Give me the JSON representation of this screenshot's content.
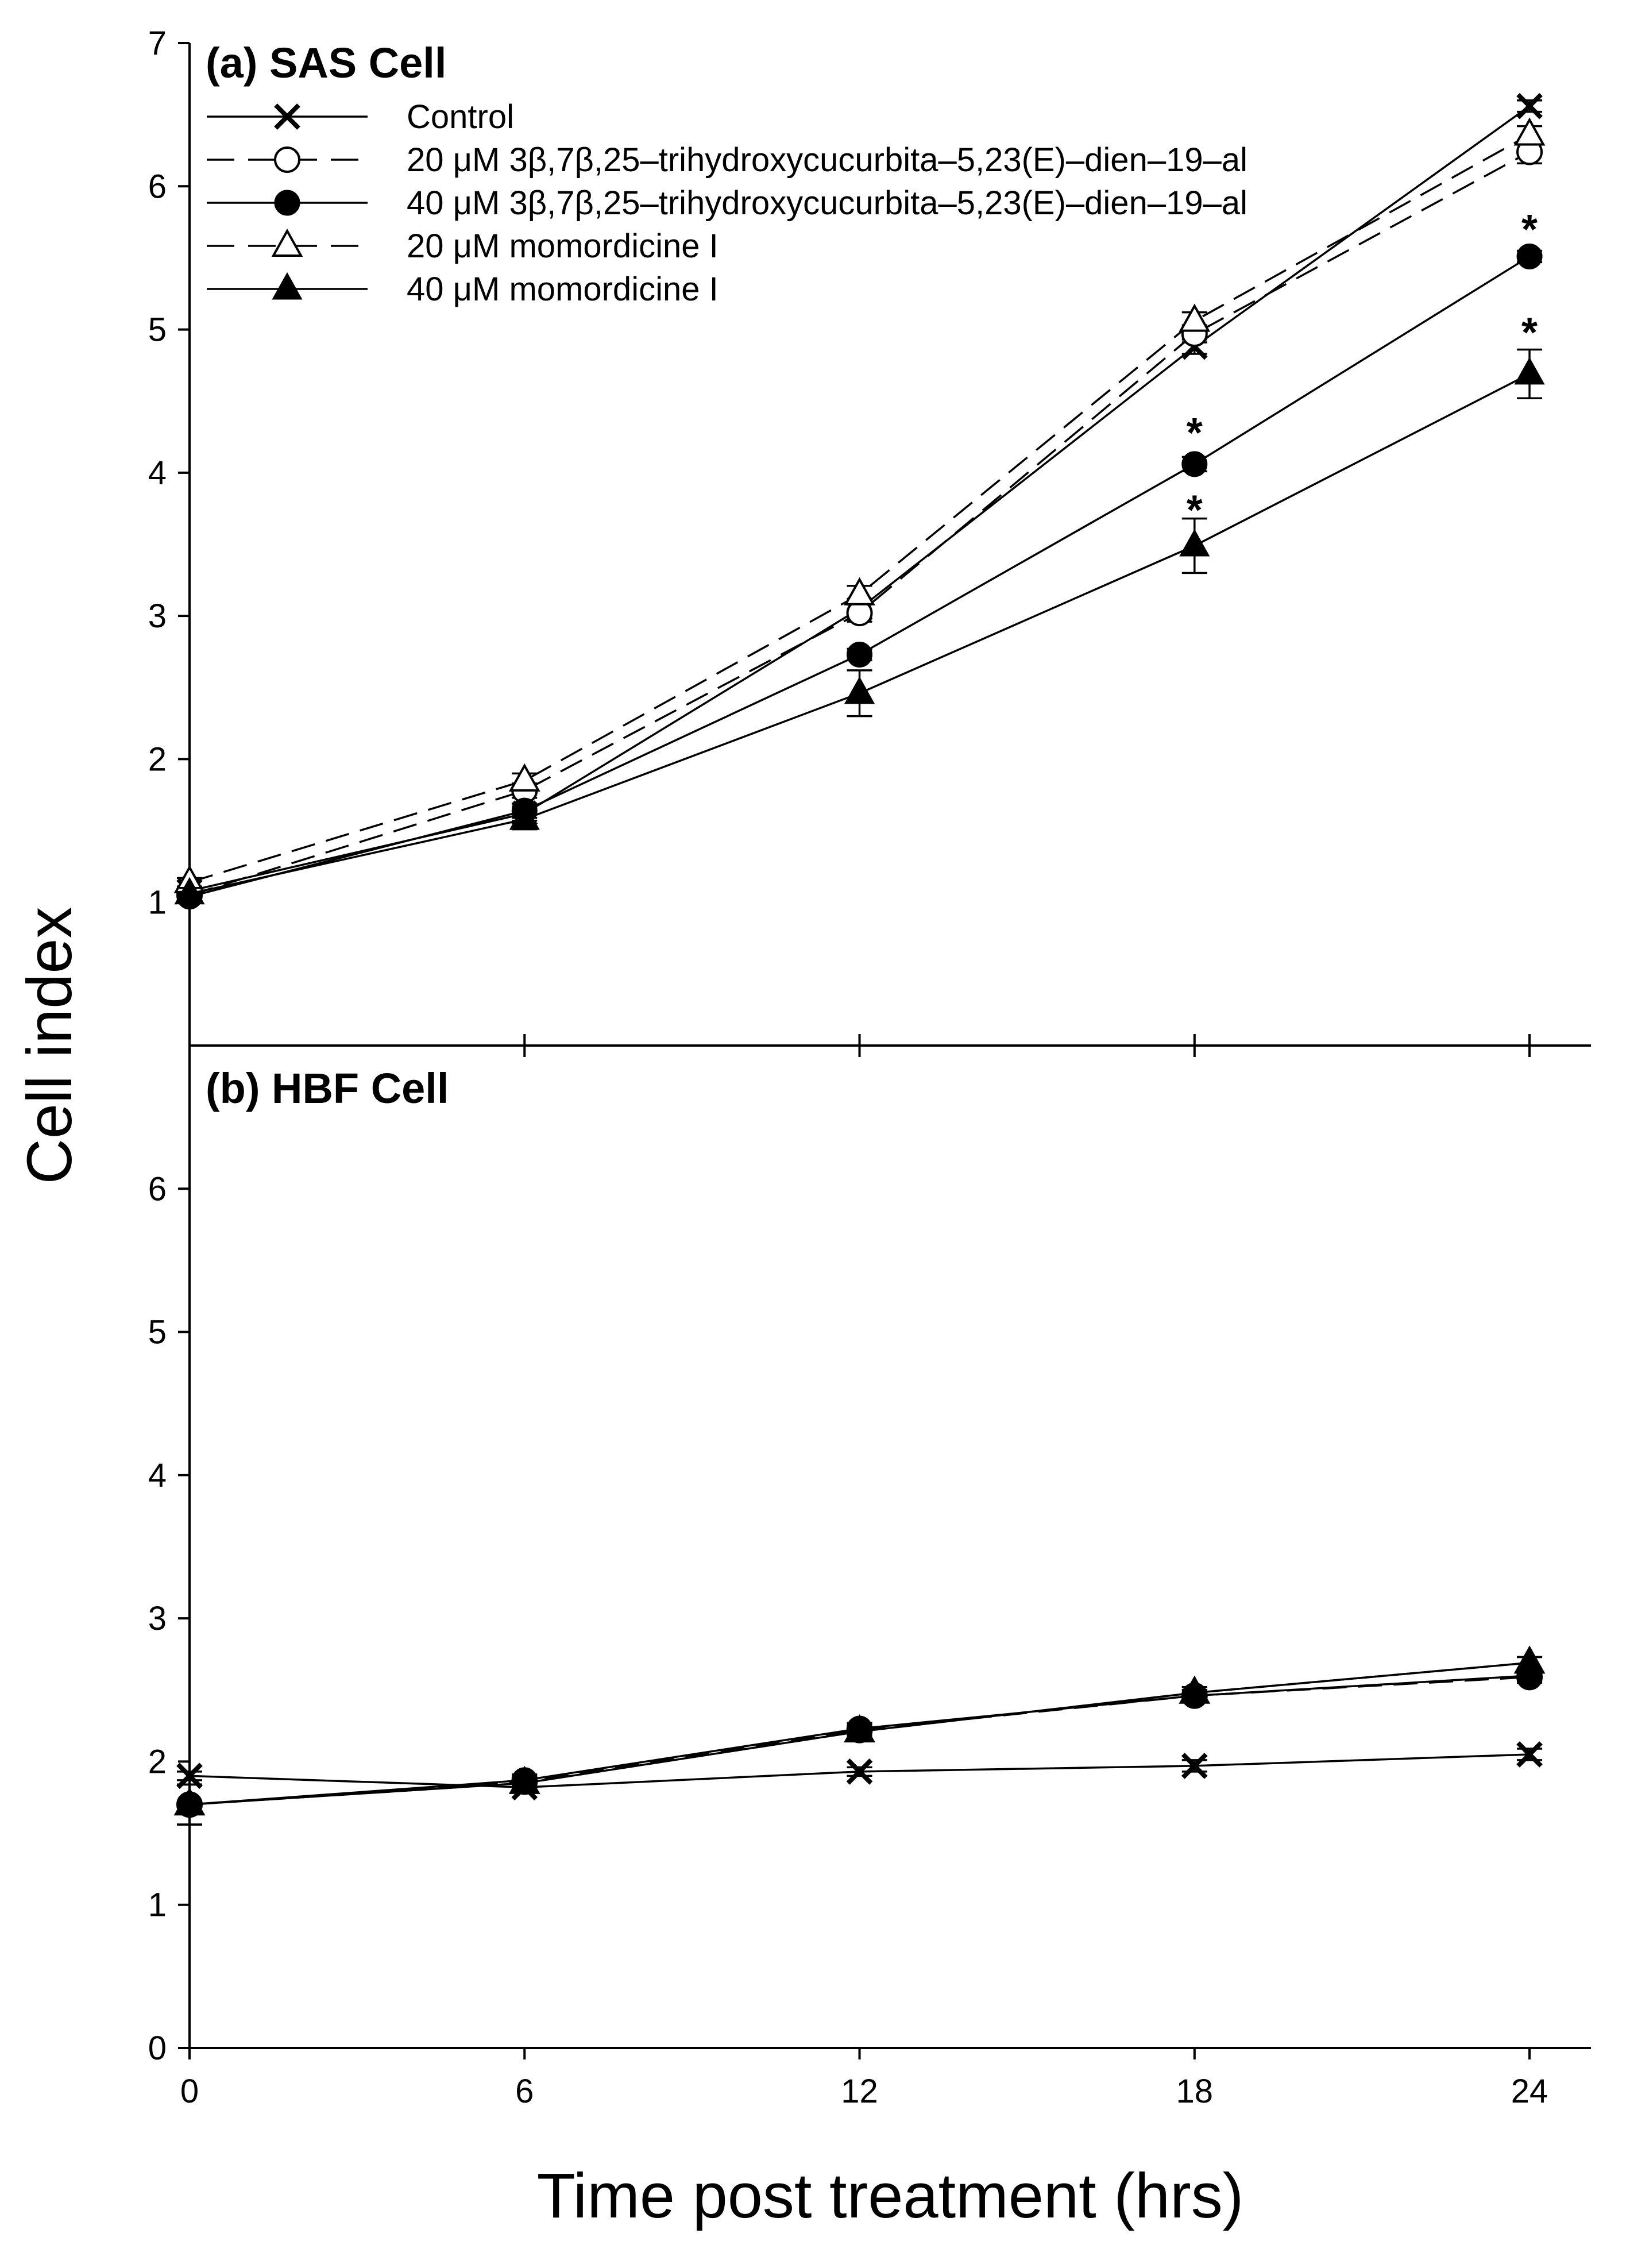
{
  "chart_data": {
    "type": "line",
    "ylabel": "Cell index",
    "xlabel": "Time post treatment (hrs)",
    "x": [
      0,
      6,
      12,
      18,
      24
    ],
    "x_ticks": [
      "0",
      "6",
      "12",
      "18",
      "24"
    ],
    "xlim": [
      0,
      25.1
    ],
    "legend": [
      {
        "id": "control",
        "label": "Control",
        "marker": "x",
        "dash": false
      },
      {
        "id": "c20",
        "label": "20 μM 3β,7β,25–trihydroxycucurbita–5,23(E)–dien–19–al",
        "marker": "open-circle",
        "dash": true
      },
      {
        "id": "c40",
        "label": "40 μM 3β,7β,25–trihydroxycucurbita–5,23(E)–dien–19–al",
        "marker": "filled-circle",
        "dash": false
      },
      {
        "id": "m20",
        "label": "20 μM  momordicine I",
        "marker": "open-triangle",
        "dash": true
      },
      {
        "id": "m40",
        "label": "40 μM  momordicine I",
        "marker": "filled-triangle",
        "dash": false
      }
    ],
    "panels": [
      {
        "id": "a",
        "title": "(a) SAS Cell",
        "ylim": [
          0,
          7
        ],
        "y_ticks": [
          "1",
          "2",
          "3",
          "4",
          "5",
          "6",
          "7"
        ],
        "series": [
          {
            "id": "control",
            "values": [
              1.08,
              1.62,
              3.05,
              4.88,
              6.56
            ],
            "err": [
              0.03,
              0.05,
              0.05,
              0.05,
              0.04
            ]
          },
          {
            "id": "c20",
            "values": [
              1.05,
              1.78,
              3.02,
              4.97,
              6.24
            ],
            "err": [
              0.03,
              0.05,
              0.06,
              0.06,
              0.08
            ]
          },
          {
            "id": "c40",
            "values": [
              1.04,
              1.64,
              2.73,
              4.06,
              5.51
            ],
            "err": [
              0.03,
              0.05,
              0.04,
              0.05,
              0.04
            ]
          },
          {
            "id": "m20",
            "values": [
              1.14,
              1.85,
              3.15,
              5.06,
              6.36
            ],
            "err": [
              0.03,
              0.05,
              0.06,
              0.06,
              0.06
            ]
          },
          {
            "id": "m40",
            "values": [
              1.06,
              1.58,
              2.46,
              3.49,
              4.69
            ],
            "err": [
              0.04,
              0.07,
              0.16,
              0.19,
              0.17
            ]
          }
        ],
        "annotations": [
          {
            "text": "*",
            "x": 18,
            "y": 4.34
          },
          {
            "text": "*",
            "x": 18,
            "y": 3.8
          },
          {
            "text": "*",
            "x": 24,
            "y": 5.76
          },
          {
            "text": "*",
            "x": 24,
            "y": 5.04
          }
        ]
      },
      {
        "id": "b",
        "title": "(b) HBF Cell",
        "ylim": [
          0,
          7
        ],
        "y_ticks": [
          "0",
          "1",
          "2",
          "3",
          "4",
          "5",
          "6"
        ],
        "series": [
          {
            "id": "control",
            "values": [
              1.9,
              1.82,
              1.93,
              1.97,
              2.05
            ],
            "err": [
              0.03,
              0.03,
              0.03,
              0.04,
              0.04
            ]
          },
          {
            "id": "c20",
            "values": [
              1.7,
              1.86,
              2.22,
              2.46,
              2.59
            ],
            "err": [
              0.14,
              0.04,
              0.04,
              0.04,
              0.04
            ]
          },
          {
            "id": "c40",
            "values": [
              1.7,
              1.87,
              2.23,
              2.46,
              2.6
            ],
            "err": [
              0.14,
              0.04,
              0.04,
              0.04,
              0.04
            ]
          },
          {
            "id": "m20",
            "values": [
              1.7,
              1.85,
              2.21,
              2.48,
              2.69
            ],
            "err": [
              0.14,
              0.04,
              0.04,
              0.04,
              0.04
            ]
          },
          {
            "id": "m40",
            "values": [
              1.7,
              1.85,
              2.21,
              2.48,
              2.69
            ],
            "err": [
              0.14,
              0.04,
              0.04,
              0.04,
              0.04
            ]
          }
        ],
        "annotations": []
      }
    ]
  }
}
